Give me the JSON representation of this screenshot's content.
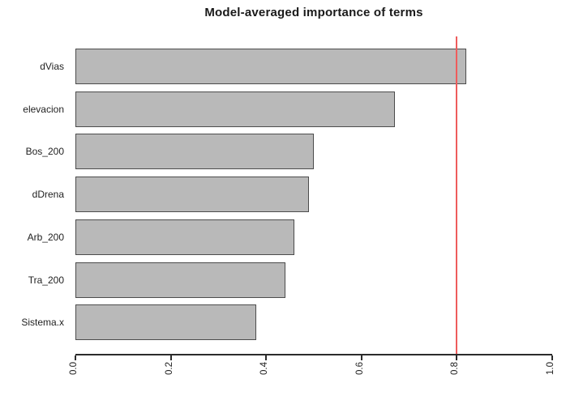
{
  "chart_data": {
    "type": "bar",
    "orientation": "horizontal",
    "title": "Model-averaged importance of terms",
    "categories": [
      "dVias",
      "elevacion",
      "Bos_200",
      "dDrena",
      "Arb_200",
      "Tra_200",
      "Sistema.x"
    ],
    "values": [
      0.82,
      0.67,
      0.5,
      0.49,
      0.46,
      0.44,
      0.38
    ],
    "xlim": [
      0.0,
      1.0
    ],
    "x_tick_labels": [
      "0.0",
      "0.2",
      "0.4",
      "0.6",
      "0.8",
      "1.0"
    ],
    "x_tick_values": [
      0.0,
      0.2,
      0.4,
      0.6,
      0.8,
      1.0
    ],
    "x_tick_label_rotation_deg": 90,
    "reference_line": {
      "x": 0.8,
      "color": "#ee5c5c"
    },
    "bar_fill": "#b9b9b9",
    "bar_border": "#4c4c4c",
    "grid": false,
    "legend": false,
    "background": "#ffffff"
  }
}
